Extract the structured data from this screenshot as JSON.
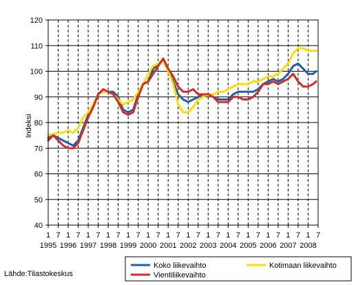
{
  "chart_data": {
    "type": "line",
    "ylabel": "Indeksi",
    "ylim": [
      40,
      120
    ],
    "yticks": [
      40,
      50,
      60,
      70,
      80,
      90,
      100,
      110,
      120
    ],
    "xlim": [
      1995.0,
      2008.5
    ],
    "month_tick_labels": [
      "1",
      "7",
      "1",
      "7",
      "1",
      "7",
      "1",
      "7",
      "1",
      "7",
      "1",
      "7",
      "1",
      "7",
      "1",
      "7",
      "1",
      "7",
      "1",
      "7",
      "1",
      "7",
      "1",
      "7",
      "1",
      "7",
      "1",
      "7"
    ],
    "year_labels": [
      "1995",
      "1996",
      "1997",
      "1998",
      "1999",
      "2000",
      "2001",
      "2002",
      "2003",
      "2004",
      "2005",
      "2006",
      "2007",
      "2008"
    ],
    "grid": {
      "vertical": "dashed",
      "horizontal": "solid"
    },
    "legend_position": "bottom-right",
    "series": [
      {
        "name": "Koko liikevaihto",
        "color": "#1f5fa8",
        "points": [
          [
            1995.0,
            74
          ],
          [
            1995.25,
            75
          ],
          [
            1995.5,
            74
          ],
          [
            1995.75,
            73
          ],
          [
            1996.0,
            72
          ],
          [
            1996.25,
            71
          ],
          [
            1996.5,
            73
          ],
          [
            1996.75,
            78
          ],
          [
            1997.0,
            83
          ],
          [
            1997.25,
            86
          ],
          [
            1997.5,
            91
          ],
          [
            1997.75,
            92
          ],
          [
            1998.0,
            92
          ],
          [
            1998.25,
            92
          ],
          [
            1998.5,
            90
          ],
          [
            1998.75,
            85
          ],
          [
            1999.0,
            84
          ],
          [
            1999.25,
            85
          ],
          [
            1999.5,
            91
          ],
          [
            1999.75,
            95
          ],
          [
            2000.0,
            96
          ],
          [
            2000.25,
            101
          ],
          [
            2000.5,
            103
          ],
          [
            2000.75,
            104
          ],
          [
            2001.0,
            100
          ],
          [
            2001.25,
            96
          ],
          [
            2001.5,
            91
          ],
          [
            2001.75,
            89
          ],
          [
            2002.0,
            88
          ],
          [
            2002.25,
            89
          ],
          [
            2002.5,
            90
          ],
          [
            2002.75,
            91
          ],
          [
            2003.0,
            91
          ],
          [
            2003.25,
            90
          ],
          [
            2003.5,
            89
          ],
          [
            2003.75,
            89
          ],
          [
            2004.0,
            89
          ],
          [
            2004.25,
            91
          ],
          [
            2004.5,
            92
          ],
          [
            2004.75,
            92
          ],
          [
            2005.0,
            92
          ],
          [
            2005.25,
            92
          ],
          [
            2005.5,
            93
          ],
          [
            2005.75,
            95
          ],
          [
            2006.0,
            96
          ],
          [
            2006.25,
            97
          ],
          [
            2006.5,
            96
          ],
          [
            2006.75,
            97
          ],
          [
            2007.0,
            99
          ],
          [
            2007.25,
            102
          ],
          [
            2007.5,
            103
          ],
          [
            2007.75,
            101
          ],
          [
            2008.0,
            99
          ],
          [
            2008.25,
            99
          ],
          [
            2008.4,
            100
          ]
        ]
      },
      {
        "name": "Kotimaan liikevaihto",
        "color": "#ffdd00",
        "points": [
          [
            1995.0,
            75
          ],
          [
            1995.25,
            75.5
          ],
          [
            1995.5,
            76
          ],
          [
            1995.75,
            76
          ],
          [
            1996.0,
            77
          ],
          [
            1996.25,
            76
          ],
          [
            1996.5,
            78
          ],
          [
            1996.75,
            82
          ],
          [
            1997.0,
            84
          ],
          [
            1997.25,
            87
          ],
          [
            1997.5,
            91
          ],
          [
            1997.75,
            92
          ],
          [
            1998.0,
            92
          ],
          [
            1998.25,
            91
          ],
          [
            1998.5,
            89
          ],
          [
            1998.75,
            87
          ],
          [
            1999.0,
            88
          ],
          [
            1999.25,
            89
          ],
          [
            1999.5,
            92
          ],
          [
            1999.75,
            95
          ],
          [
            2000.0,
            99
          ],
          [
            2000.25,
            102
          ],
          [
            2000.5,
            103
          ],
          [
            2000.75,
            104
          ],
          [
            2001.0,
            100
          ],
          [
            2001.25,
            95
          ],
          [
            2001.5,
            87
          ],
          [
            2001.75,
            84
          ],
          [
            2002.0,
            84
          ],
          [
            2002.25,
            86
          ],
          [
            2002.5,
            89
          ],
          [
            2002.75,
            90
          ],
          [
            2003.0,
            91
          ],
          [
            2003.25,
            91
          ],
          [
            2003.5,
            92
          ],
          [
            2003.75,
            92
          ],
          [
            2004.0,
            93
          ],
          [
            2004.25,
            94
          ],
          [
            2004.5,
            95
          ],
          [
            2004.75,
            95
          ],
          [
            2005.0,
            95
          ],
          [
            2005.25,
            96
          ],
          [
            2005.5,
            96
          ],
          [
            2005.75,
            97
          ],
          [
            2006.0,
            98
          ],
          [
            2006.25,
            98
          ],
          [
            2006.5,
            99
          ],
          [
            2006.75,
            101
          ],
          [
            2007.0,
            103
          ],
          [
            2007.25,
            107
          ],
          [
            2007.5,
            109
          ],
          [
            2007.75,
            109
          ],
          [
            2008.0,
            108
          ],
          [
            2008.25,
            108
          ],
          [
            2008.4,
            108
          ]
        ]
      },
      {
        "name": "Vientiliikevaihto",
        "color": "#d62a2a",
        "points": [
          [
            1995.0,
            73
          ],
          [
            1995.25,
            75
          ],
          [
            1995.5,
            73
          ],
          [
            1995.75,
            71
          ],
          [
            1996.0,
            70
          ],
          [
            1996.25,
            70
          ],
          [
            1996.5,
            72
          ],
          [
            1996.75,
            77
          ],
          [
            1997.0,
            82
          ],
          [
            1997.25,
            86
          ],
          [
            1997.5,
            91
          ],
          [
            1997.75,
            93
          ],
          [
            1998.0,
            92
          ],
          [
            1998.25,
            91
          ],
          [
            1998.5,
            88
          ],
          [
            1998.75,
            84
          ],
          [
            1999.0,
            83
          ],
          [
            1999.25,
            84
          ],
          [
            1999.5,
            90
          ],
          [
            1999.75,
            95
          ],
          [
            2000.0,
            96
          ],
          [
            2000.25,
            99
          ],
          [
            2000.5,
            102
          ],
          [
            2000.75,
            105
          ],
          [
            2001.0,
            101
          ],
          [
            2001.25,
            98
          ],
          [
            2001.5,
            94
          ],
          [
            2001.75,
            92
          ],
          [
            2002.0,
            92
          ],
          [
            2002.25,
            93
          ],
          [
            2002.5,
            91
          ],
          [
            2002.75,
            91
          ],
          [
            2003.0,
            91
          ],
          [
            2003.25,
            90
          ],
          [
            2003.5,
            88
          ],
          [
            2003.75,
            88
          ],
          [
            2004.0,
            88
          ],
          [
            2004.25,
            90
          ],
          [
            2004.5,
            90
          ],
          [
            2004.75,
            89
          ],
          [
            2005.0,
            89
          ],
          [
            2005.25,
            90
          ],
          [
            2005.5,
            92
          ],
          [
            2005.75,
            95
          ],
          [
            2006.0,
            95
          ],
          [
            2006.25,
            96
          ],
          [
            2006.5,
            95
          ],
          [
            2006.75,
            96
          ],
          [
            2007.0,
            97
          ],
          [
            2007.25,
            99
          ],
          [
            2007.5,
            96
          ],
          [
            2007.75,
            94
          ],
          [
            2008.0,
            94
          ],
          [
            2008.25,
            95
          ],
          [
            2008.4,
            96
          ]
        ]
      }
    ]
  },
  "source_label": "Lähde:Tilastokeskus"
}
